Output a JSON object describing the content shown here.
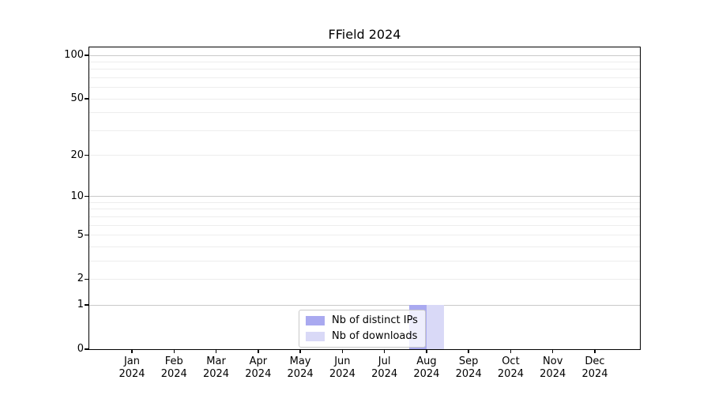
{
  "chart_data": {
    "type": "bar",
    "title": "FField 2024",
    "categories": [
      "Jan 2024",
      "Feb 2024",
      "Mar 2024",
      "Apr 2024",
      "May 2024",
      "Jun 2024",
      "Jul 2024",
      "Aug 2024",
      "Sep 2024",
      "Oct 2024",
      "Nov 2024",
      "Dec 2024"
    ],
    "series": [
      {
        "name": "Nb of distinct IPs",
        "color": "#a9a9f0",
        "values": [
          0,
          0,
          0,
          0,
          0,
          0,
          0,
          1,
          0,
          0,
          0,
          0
        ]
      },
      {
        "name": "Nb of downloads",
        "color": "#d9d9f7",
        "values": [
          0,
          0,
          0,
          0,
          0,
          0,
          0,
          1,
          0,
          0,
          0,
          0
        ]
      }
    ],
    "xlabel": "",
    "ylabel": "",
    "y_axis": {
      "scale": "log1p",
      "ylim": [
        0,
        100
      ],
      "tick_values": [
        0,
        1,
        2,
        5,
        10,
        20,
        50,
        100
      ],
      "tick_labels": [
        "0",
        "1",
        "2",
        "5",
        "10",
        "20",
        "50",
        "100"
      ],
      "minor_gridline_values": [
        1,
        2,
        3,
        4,
        5,
        6,
        7,
        8,
        9,
        10,
        20,
        30,
        40,
        50,
        60,
        70,
        80,
        90,
        100
      ],
      "emphasized_gridline_values": [
        1,
        10,
        100
      ]
    },
    "grid": "horizontal",
    "legend": {
      "position": "lower center",
      "entries": [
        "Nb of distinct IPs",
        "Nb of downloads"
      ]
    }
  },
  "colors": {
    "background": "#ffffff",
    "bar_distinct_ips": "#a9a9f0",
    "bar_downloads": "#d9d9f7",
    "grid_minor": "#ededed",
    "grid_emphasized": "#c9c9c9",
    "spine": "#000000",
    "legend_border": "#c9c9c9",
    "text": "#000000"
  }
}
